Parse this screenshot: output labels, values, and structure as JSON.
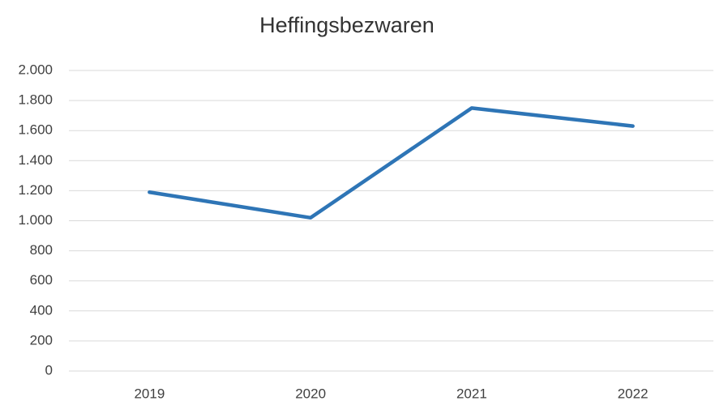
{
  "chart_data": {
    "type": "line",
    "title": "Heffingsbezwaren",
    "categories": [
      "2019",
      "2020",
      "2021",
      "2022"
    ],
    "series": [
      {
        "name": "Heffingsbezwaren",
        "color": "#2e75b6",
        "values": [
          1190,
          1020,
          1750,
          1630
        ]
      }
    ],
    "ylim": [
      0,
      2000
    ],
    "yticks": [
      0,
      200,
      400,
      600,
      800,
      {
        "value": 1000,
        "label": "1.000"
      },
      {
        "value": 1200,
        "label": "1.200"
      },
      {
        "value": 1400,
        "label": "1.400"
      },
      {
        "value": 1600,
        "label": "1.600"
      },
      {
        "value": 1800,
        "label": "1.800"
      },
      {
        "value": 2000,
        "label": "2.000"
      }
    ],
    "grid": true
  }
}
